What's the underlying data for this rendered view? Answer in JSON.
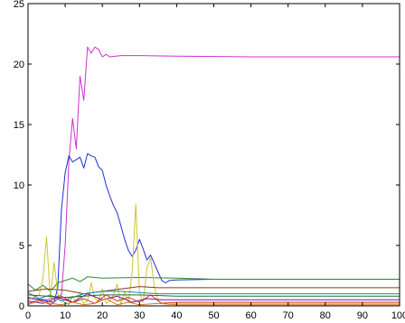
{
  "chart_data": {
    "type": "line",
    "title": "",
    "xlabel": "",
    "ylabel": "",
    "xlim": [
      0,
      100
    ],
    "ylim": [
      0,
      25
    ],
    "x_ticks": [
      0,
      10,
      20,
      30,
      40,
      50,
      60,
      70,
      80,
      90,
      100
    ],
    "y_ticks": [
      0,
      5,
      10,
      15,
      20,
      25
    ],
    "x_tick_labels": [
      "0",
      "10",
      "20",
      "30",
      "40",
      "50",
      "60",
      "70",
      "80",
      "90",
      "100"
    ],
    "y_tick_labels": [
      "0",
      "5",
      "10",
      "15",
      "20",
      "25"
    ],
    "grid": false,
    "legend": "none",
    "series": [
      {
        "color": "#cc33cc",
        "x": [
          0,
          5,
          9,
          10,
          11,
          12,
          13,
          14,
          15,
          16,
          17,
          18,
          19,
          20,
          21,
          22,
          25,
          30,
          40,
          60,
          80,
          100
        ],
        "y": [
          0.6,
          0.5,
          0.9,
          5,
          12,
          15.5,
          13,
          19,
          17,
          21.4,
          20.9,
          21.4,
          21.2,
          20.6,
          20.8,
          20.6,
          20.7,
          20.7,
          20.65,
          20.6,
          20.6,
          20.6
        ]
      },
      {
        "color": "#1f2fd4",
        "x": [
          0,
          7,
          8,
          9,
          10,
          11,
          12,
          13,
          14,
          15,
          16,
          17,
          18,
          19,
          20,
          21,
          22,
          23,
          24,
          25,
          26,
          27,
          28,
          29,
          30,
          31,
          32,
          33,
          34,
          35,
          36,
          37,
          38,
          40,
          50,
          60,
          80,
          100
        ],
        "y": [
          0.7,
          0.3,
          1.5,
          8,
          11,
          12.4,
          11.9,
          12.1,
          12.3,
          11.4,
          12.6,
          12.4,
          12.3,
          11.5,
          11.2,
          10,
          9.1,
          8.3,
          7.7,
          6.6,
          5.5,
          4.6,
          4.1,
          4.6,
          5.5,
          4.7,
          3.8,
          4.2,
          3.5,
          2.8,
          2.1,
          1.9,
          2.1,
          2.15,
          2.2,
          2.2,
          2.2,
          2.2
        ]
      },
      {
        "color": "#2a8a2a",
        "x": [
          0,
          2,
          4,
          6,
          8,
          10,
          12,
          14,
          16,
          20,
          30,
          40,
          50,
          60,
          80,
          100
        ],
        "y": [
          1.8,
          1.3,
          1.7,
          1.2,
          1.9,
          2.1,
          2.3,
          2.0,
          2.4,
          2.3,
          2.35,
          2.3,
          2.2,
          2.2,
          2.2,
          2.2
        ]
      },
      {
        "color": "#c8c830",
        "x": [
          0,
          3,
          4,
          5,
          6,
          7,
          8,
          9,
          10,
          11,
          12,
          13,
          14,
          15,
          16,
          17,
          18,
          19,
          20,
          21,
          22,
          23,
          24,
          25,
          26,
          27,
          28,
          29,
          30,
          31,
          32,
          33,
          34,
          35,
          36,
          37,
          38,
          39,
          40,
          50,
          60,
          80,
          100
        ],
        "y": [
          0.5,
          0.9,
          2.2,
          5.7,
          0.6,
          3.6,
          1.0,
          0.4,
          0.3,
          0.1,
          0.8,
          0.3,
          1.0,
          0.2,
          0.4,
          1.9,
          0.6,
          0.4,
          1.4,
          0.2,
          0.4,
          0.9,
          1.8,
          0.1,
          1.2,
          0.3,
          2.7,
          8.4,
          1.1,
          0.3,
          3.1,
          4.0,
          1.6,
          0.4,
          0.2,
          0.3,
          0.1,
          0.2,
          0.2,
          0.2,
          0.2,
          0.2,
          0.2
        ]
      },
      {
        "color": "#8b3a1a",
        "x": [
          0,
          5,
          10,
          15,
          20,
          25,
          30,
          35,
          40,
          60,
          80,
          100
        ],
        "y": [
          1.2,
          1.4,
          1.3,
          1.0,
          1.2,
          1.4,
          1.6,
          1.5,
          1.5,
          1.5,
          1.5,
          1.5
        ]
      },
      {
        "color": "#1a8fa0",
        "x": [
          0,
          3,
          6,
          9,
          12,
          15,
          20,
          25,
          30,
          35,
          40,
          60,
          80,
          100
        ],
        "y": [
          1.1,
          0.6,
          0.9,
          0.4,
          0.7,
          1.0,
          1.2,
          1.2,
          1.1,
          1.0,
          1.0,
          1.0,
          1.0,
          1.0
        ]
      },
      {
        "color": "#d43a2a",
        "x": [
          0,
          3,
          6,
          9,
          12,
          15,
          18,
          21,
          24,
          27,
          30,
          33,
          36,
          40,
          60,
          80,
          100
        ],
        "y": [
          0.2,
          0.5,
          0.1,
          0.8,
          0.3,
          0.6,
          0.2,
          0.9,
          0.4,
          0.7,
          0.3,
          0.9,
          0.2,
          0.3,
          0.3,
          0.3,
          0.3
        ]
      },
      {
        "color": "#6a1a9a",
        "x": [
          0,
          4,
          8,
          12,
          16,
          20,
          24,
          28,
          32,
          36,
          40,
          60,
          80,
          100
        ],
        "y": [
          0.4,
          0.2,
          0.7,
          0.3,
          1.0,
          0.5,
          0.8,
          0.3,
          0.6,
          0.5,
          0.5,
          0.5,
          0.5,
          0.5
        ]
      },
      {
        "color": "#e07820",
        "x": [
          0,
          3,
          6,
          9,
          12,
          15,
          18,
          21,
          24,
          27,
          30,
          35,
          40,
          60,
          80,
          100
        ],
        "y": [
          0.1,
          0.4,
          0.2,
          0.1,
          0.3,
          0.1,
          0.2,
          0.6,
          0.1,
          0.3,
          0.1,
          0.2,
          0.1,
          0.1,
          0.1,
          0.1
        ]
      },
      {
        "color": "#2a6a3a",
        "x": [
          0,
          5,
          10,
          15,
          20,
          30,
          40,
          60,
          80,
          100
        ],
        "y": [
          0.9,
          0.8,
          0.7,
          0.8,
          0.9,
          0.9,
          0.8,
          0.8,
          0.8,
          0.8
        ]
      }
    ]
  }
}
